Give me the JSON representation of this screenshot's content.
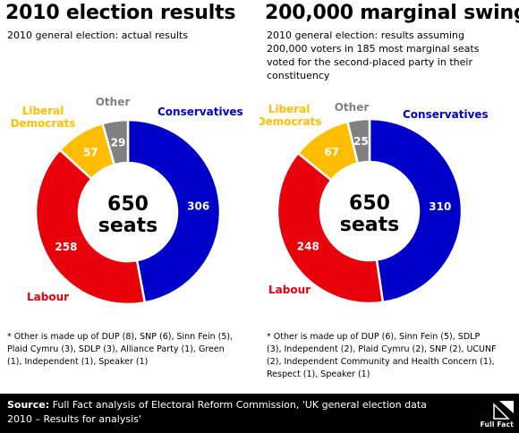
{
  "charts": [
    {
      "title": "2010 election results",
      "subtitle": "2010 general election: actual results",
      "center_number": "650",
      "center_unit": "seats",
      "footnote": "* Other is made up of DUP (8), SNP (6), Sinn Fein (5),\nPlaid Cymru (3), SDLP (3), Alliance Party (1), Green\n(1), Independent (1), Speaker (1)"
    },
    {
      "title": "200,000 marginal swing",
      "subtitle": "2010 general election: results assuming\n200,000 voters in 185 most marginal seats\nvoted for the second-placed party in their\nconstituency",
      "center_number": "650",
      "center_unit": "seats",
      "footnote": "* Other is made up of DUP (6), Sinn Fein (5), SDLP\n(3), Independent (2), Plaid Cymru (2), SNP (2), UCUNF\n(2), Independent Community and Health Concern (1),\nRespect (1), Speaker (1)"
    }
  ],
  "chart_data": [
    {
      "type": "pie",
      "title": "2010 election results",
      "total": 650,
      "slices": [
        {
          "label": "Conservatives",
          "value": 306,
          "color": "#0000c8"
        },
        {
          "label": "Labour",
          "value": 258,
          "color": "#e8000a"
        },
        {
          "label": "Liberal\nDemocrats",
          "value": 57,
          "color": "#ffbf00"
        },
        {
          "label": "Other",
          "value": 29,
          "color": "#808080"
        }
      ]
    },
    {
      "type": "pie",
      "title": "200,000 marginal swing",
      "total": 650,
      "slices": [
        {
          "label": "Conservatives",
          "value": 310,
          "color": "#0000c8"
        },
        {
          "label": "Labour",
          "value": 248,
          "color": "#e8000a"
        },
        {
          "label": "Liberal\nDemocrats",
          "value": 67,
          "color": "#ffbf00"
        },
        {
          "label": "Other",
          "value": 25,
          "color": "#808080"
        }
      ]
    }
  ],
  "footer": {
    "source_label": "Source:",
    "source_text": " Full Fact analysis of Electoral Reform Commission, 'UK general election data 2010 – Results for analysis'",
    "brand": "Full Fact"
  }
}
